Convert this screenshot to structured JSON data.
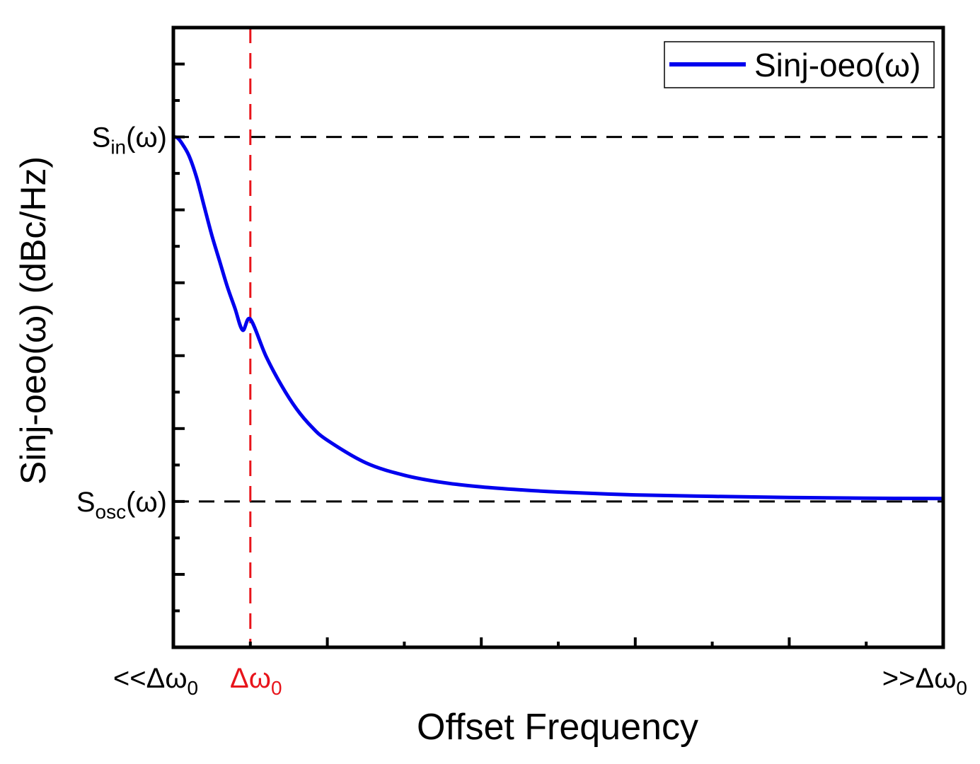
{
  "chart_data": {
    "type": "line",
    "title": "",
    "xlabel": "Offset Frequency",
    "ylabel": "Sinj-oeo(ω) (dBc/Hz)",
    "xlim": [
      0,
      10
    ],
    "ylim": [
      -2.0,
      6.5
    ],
    "x_tick_labels": [
      {
        "text": "<<Δω",
        "sub": "0",
        "x": 0,
        "color": "#000000"
      },
      {
        "text": "Δω",
        "sub": "0",
        "x": 1,
        "color": "#e8141b"
      },
      {
        "text": ">>Δω",
        "sub": "0",
        "x": 10,
        "color": "#000000"
      }
    ],
    "y_ref_labels": [
      {
        "text": "S",
        "sub": "in",
        "suffix": "(ω)",
        "y": 5
      },
      {
        "text": "S",
        "sub": "osc",
        "suffix": "(ω)",
        "y": 0
      }
    ],
    "x_major_ticks": [
      0,
      2,
      4,
      6,
      8,
      10
    ],
    "x_minor_ticks": [
      1,
      3,
      5,
      7,
      9
    ],
    "y_major_ticks": [
      -1,
      0,
      1,
      2,
      3,
      4,
      5,
      6
    ],
    "y_minor_ticks": [
      -1.5,
      -0.5,
      0.5,
      1.5,
      2.5,
      3.5,
      4.5,
      5.5,
      6.5
    ],
    "reference_lines": {
      "horizontal": [
        5,
        0
      ],
      "vertical": [
        1
      ],
      "horizontal_color": "#000000",
      "vertical_color": "#e8141b"
    },
    "legend": {
      "position": "top-right"
    },
    "series": [
      {
        "name": "Sinj-oeo(ω)",
        "color": "#0000ee",
        "x": [
          0,
          0.05,
          0.1,
          0.2,
          0.3,
          0.4,
          0.5,
          0.6,
          0.7,
          0.8,
          0.9,
          1.0,
          1.2,
          1.4,
          1.6,
          1.8,
          2.0,
          2.5,
          3.0,
          3.5,
          4.0,
          4.5,
          5.0,
          6.0,
          7.0,
          8.0,
          9.0,
          10.0
        ],
        "y": [
          5.0,
          4.99,
          4.93,
          4.75,
          4.45,
          4.05,
          3.65,
          3.3,
          2.95,
          2.65,
          2.35,
          2.5,
          2.0,
          1.6,
          1.27,
          1.02,
          0.84,
          0.53,
          0.36,
          0.26,
          0.2,
          0.16,
          0.13,
          0.09,
          0.07,
          0.055,
          0.045,
          0.04
        ]
      }
    ]
  }
}
